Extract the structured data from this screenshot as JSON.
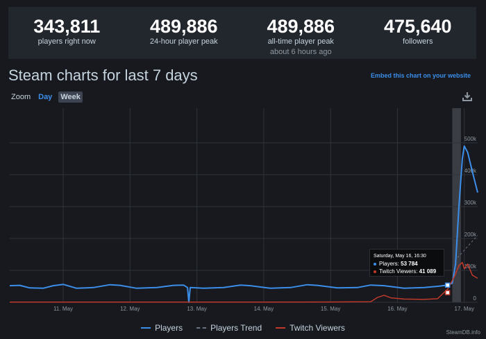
{
  "stats": [
    {
      "value": "343,811",
      "label": "players right now",
      "sub": ""
    },
    {
      "value": "489,886",
      "label": "24-hour player peak",
      "sub": ""
    },
    {
      "value": "489,886",
      "label": "all-time player peak",
      "sub": "about 6 hours ago"
    },
    {
      "value": "475,640",
      "label": "followers",
      "sub": ""
    }
  ],
  "title": "Steam charts for last 7 days",
  "embed_link": "Embed this chart on your website",
  "zoom": {
    "label": "Zoom",
    "day": "Day",
    "week": "Week"
  },
  "tooltip": {
    "date": "Saturday, May 16, 16:30",
    "players_label": "Players:",
    "players_value": "53 784",
    "twitch_label": "Twitch Viewers:",
    "twitch_value": "41 089"
  },
  "credit": "SteamDB.info",
  "colors": {
    "players": "#3b8eea",
    "twitch": "#c0392b",
    "trend": "#6b7280",
    "grid": "#2f333b",
    "highlight": "#3a3d43"
  },
  "chart_data": {
    "type": "line",
    "x_ticks": [
      "11. May",
      "12. May",
      "13. May",
      "14. May",
      "15. May",
      "16. May",
      "17. May"
    ],
    "y_ticks_left": [
      "500k",
      "400k",
      "300k",
      "200k",
      "100k",
      "0"
    ],
    "y_ticks_right": [
      "500k",
      "400k",
      "300k",
      "200k",
      "100k",
      "0"
    ],
    "ylim": [
      0,
      500000
    ],
    "x_range_days": [
      10.2,
      17.2
    ],
    "legend": [
      "Players",
      "Players Trend",
      "Twitch Viewers"
    ],
    "series": [
      {
        "name": "Players",
        "points": [
          [
            10.2,
            52000
          ],
          [
            10.35,
            53000
          ],
          [
            10.5,
            45000
          ],
          [
            10.7,
            44000
          ],
          [
            10.85,
            52000
          ],
          [
            11.0,
            56000
          ],
          [
            11.2,
            44000
          ],
          [
            11.45,
            46000
          ],
          [
            11.7,
            55000
          ],
          [
            11.85,
            53000
          ],
          [
            12.1,
            44000
          ],
          [
            12.4,
            46000
          ],
          [
            12.65,
            53000
          ],
          [
            12.8,
            54000
          ],
          [
            12.86,
            46000
          ],
          [
            12.88,
            0
          ],
          [
            12.9,
            46000
          ],
          [
            13.1,
            44000
          ],
          [
            13.4,
            46000
          ],
          [
            13.65,
            54000
          ],
          [
            13.8,
            52000
          ],
          [
            14.1,
            44000
          ],
          [
            14.4,
            46000
          ],
          [
            14.65,
            55000
          ],
          [
            14.8,
            53000
          ],
          [
            15.1,
            45000
          ],
          [
            15.4,
            46000
          ],
          [
            15.6,
            54000
          ],
          [
            15.8,
            52000
          ],
          [
            16.1,
            44000
          ],
          [
            16.4,
            46000
          ],
          [
            16.6,
            50000
          ],
          [
            16.75,
            53784
          ],
          [
            16.82,
            60000
          ],
          [
            16.87,
            120000
          ],
          [
            16.92,
            300000
          ],
          [
            16.97,
            450000
          ],
          [
            17.0,
            489886
          ],
          [
            17.05,
            470000
          ],
          [
            17.12,
            410000
          ],
          [
            17.2,
            343811
          ]
        ]
      },
      {
        "name": "Twitch Viewers",
        "points": [
          [
            10.2,
            500
          ],
          [
            11.0,
            600
          ],
          [
            12.0,
            500
          ],
          [
            13.0,
            600
          ],
          [
            14.0,
            700
          ],
          [
            15.0,
            800
          ],
          [
            15.6,
            1500
          ],
          [
            15.7,
            15000
          ],
          [
            15.8,
            22000
          ],
          [
            15.9,
            14000
          ],
          [
            16.1,
            10000
          ],
          [
            16.4,
            9000
          ],
          [
            16.6,
            11000
          ],
          [
            16.75,
            41089
          ],
          [
            16.85,
            80000
          ],
          [
            16.92,
            115000
          ],
          [
            16.97,
            125000
          ],
          [
            17.0,
            105000
          ],
          [
            17.05,
            120000
          ],
          [
            17.12,
            85000
          ],
          [
            17.2,
            75000
          ]
        ]
      },
      {
        "name": "Players Trend",
        "points": [
          [
            16.9,
            140000
          ],
          [
            17.2,
            210000
          ]
        ]
      }
    ]
  }
}
